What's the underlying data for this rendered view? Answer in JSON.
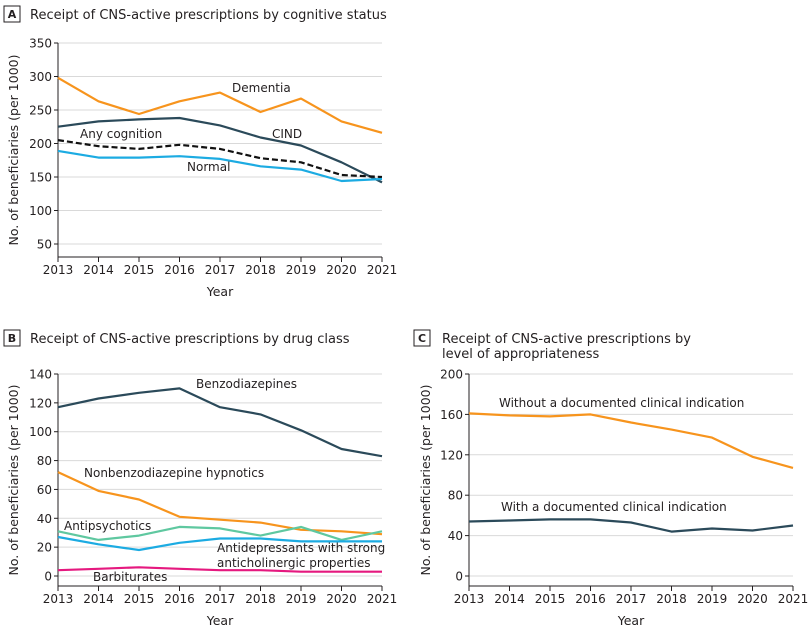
{
  "chart_data": [
    {
      "id": "A",
      "type": "line",
      "panel_label": "A",
      "title": "Receipt of CNS-active prescriptions by cognitive status",
      "xlabel": "Year",
      "ylabel": "No. of beneficiaries (per 1000)",
      "x": [
        2013,
        2014,
        2015,
        2016,
        2017,
        2018,
        2019,
        2020,
        2021
      ],
      "ylim": [
        35,
        350
      ],
      "yticks": [
        50,
        100,
        150,
        200,
        250,
        300,
        350
      ],
      "grid": true,
      "series": [
        {
          "name": "Dementia",
          "color": "#f7941d",
          "dashed": false,
          "values": [
            298,
            263,
            244,
            263,
            276,
            247,
            267,
            233,
            216
          ]
        },
        {
          "name": "CIND",
          "color": "#2b4a5a",
          "dashed": false,
          "values": [
            225,
            233,
            236,
            238,
            227,
            209,
            197,
            172,
            142
          ]
        },
        {
          "name": "Any cognition",
          "color": "#111111",
          "dashed": true,
          "values": [
            205,
            196,
            192,
            198,
            192,
            178,
            172,
            153,
            150
          ]
        },
        {
          "name": "Normal",
          "color": "#1cabe2",
          "dashed": false,
          "values": [
            189,
            179,
            179,
            181,
            177,
            166,
            161,
            144,
            147
          ]
        }
      ]
    },
    {
      "id": "B",
      "type": "line",
      "panel_label": "B",
      "title": "Receipt of CNS-active prescriptions by drug class",
      "xlabel": "Year",
      "ylabel": "No. of beneficiaries (per 1000)",
      "x": [
        2013,
        2014,
        2015,
        2016,
        2017,
        2018,
        2019,
        2020,
        2021
      ],
      "ylim": [
        -7,
        140
      ],
      "yticks": [
        0,
        20,
        40,
        60,
        80,
        100,
        120,
        140
      ],
      "grid": true,
      "series": [
        {
          "name": "Benzodiazepines",
          "color": "#2b4a5a",
          "values": [
            117,
            123,
            127,
            130,
            117,
            112,
            101,
            88,
            83
          ]
        },
        {
          "name": "Nonbenzodiazepine hypnotics",
          "color": "#f7941d",
          "values": [
            72,
            59,
            53,
            41,
            39,
            37,
            32,
            31,
            29
          ]
        },
        {
          "name": "Antipsychotics",
          "color": "#5fc8a0",
          "values": [
            31,
            25,
            28,
            34,
            33,
            28,
            34,
            25,
            31
          ]
        },
        {
          "name": "Antidepressants with strong anticholinergic properties",
          "color": "#1cabe2",
          "values": [
            27,
            22,
            18,
            23,
            26,
            26,
            24,
            24,
            24
          ]
        },
        {
          "name": "Barbiturates",
          "color": "#e5197f",
          "values": [
            4,
            5,
            6,
            5,
            4,
            4,
            3,
            3,
            3
          ]
        }
      ]
    },
    {
      "id": "C",
      "type": "line",
      "panel_label": "C",
      "title": "Receipt of CNS-active prescriptions by level of appropriateness",
      "title_lines": [
        "Receipt of CNS-active prescriptions by",
        "level of appropriateness"
      ],
      "xlabel": "Year",
      "ylabel": "No. of beneficiaries (per 1000)",
      "x": [
        2013,
        2014,
        2015,
        2016,
        2017,
        2018,
        2019,
        2020,
        2021
      ],
      "ylim": [
        -10,
        200
      ],
      "yticks": [
        0,
        40,
        80,
        120,
        160,
        200
      ],
      "grid": true,
      "series": [
        {
          "name": "Without a documented clinical indication",
          "color": "#f7941d",
          "values": [
            161,
            159,
            158,
            160,
            152,
            145,
            137,
            118,
            107
          ]
        },
        {
          "name": "With a documented clinical indication",
          "color": "#2b4a5a",
          "values": [
            54,
            55,
            56,
            56,
            53,
            44,
            47,
            45,
            50
          ]
        }
      ]
    }
  ]
}
